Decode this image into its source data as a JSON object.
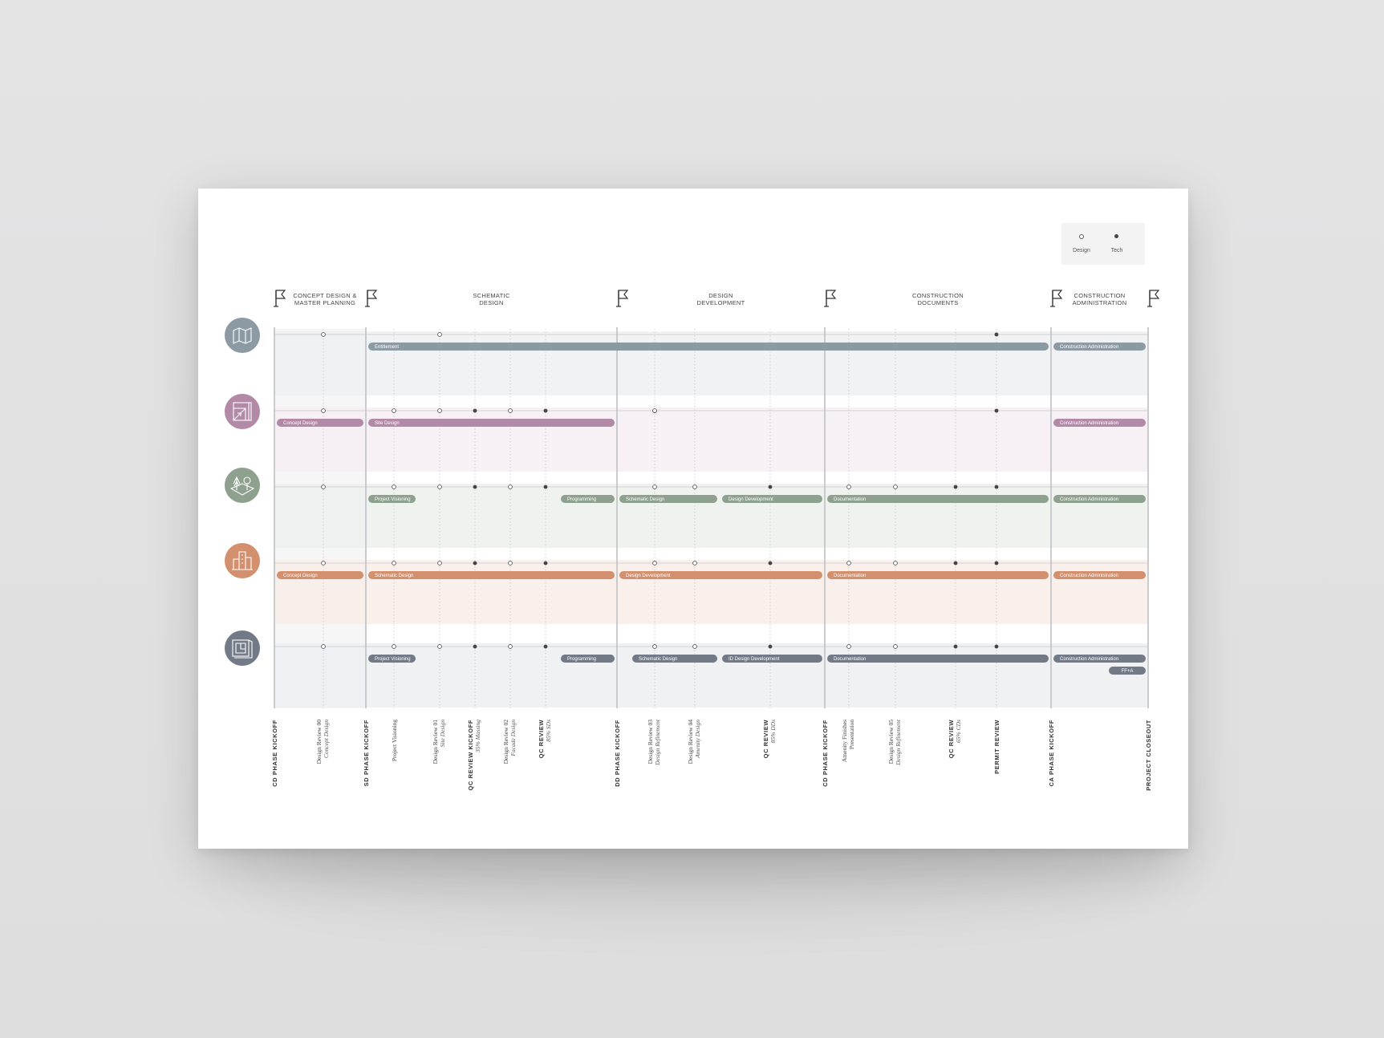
{
  "legend": [
    {
      "label": "Design",
      "marker": "open"
    },
    {
      "label": "Tech",
      "marker": "filled"
    }
  ],
  "phases": [
    {
      "lines": [
        "CONCEPT DESIGN &",
        "MASTER PLANNING"
      ],
      "start": 0,
      "end": 1
    },
    {
      "lines": [
        "SCHEMATIC",
        "DESIGN"
      ],
      "start": 1,
      "end": 2
    },
    {
      "lines": [
        "DESIGN",
        "DEVELOPMENT"
      ],
      "start": 2,
      "end": 3
    },
    {
      "lines": [
        "CONSTRUCTION",
        "DOCUMENTS"
      ],
      "start": 3,
      "end": 4
    },
    {
      "lines": [
        "CONSTRUCTION",
        "ADMINISTRATION"
      ],
      "start": 4,
      "end": 5
    }
  ],
  "flag_icon": "flag-icon",
  "milestones": [
    {
      "id": "cd",
      "main": "CD PHASE KICKOFF",
      "style": "caps",
      "kickoff": true
    },
    {
      "id": "dr00",
      "main": "Design Review 00",
      "sub": "Concept Design",
      "style": "serif"
    },
    {
      "id": "sd",
      "main": "SD PHASE KICKOFF",
      "style": "caps",
      "kickoff": true
    },
    {
      "id": "pv",
      "main": "Project Visioning",
      "style": "serif"
    },
    {
      "id": "dr01",
      "main": "Design Review 01",
      "sub": "Site Design",
      "style": "serif"
    },
    {
      "id": "qc1",
      "main": "QC REVIEW KICKOFF",
      "sub": "35% Massing",
      "style": "caps"
    },
    {
      "id": "dr02",
      "main": "Design Review 02",
      "sub": "Facade Design",
      "style": "serif"
    },
    {
      "id": "qc2",
      "main": "QC REVIEW",
      "sub": "85% SDs",
      "style": "caps"
    },
    {
      "id": "dd",
      "main": "DD PHASE KICKOFF",
      "style": "caps",
      "kickoff": true
    },
    {
      "id": "dr03",
      "main": "Design Review 03",
      "sub": "Design Refinement",
      "style": "serif"
    },
    {
      "id": "dr04",
      "main": "Design Review 04",
      "sub": "Amenity Design",
      "style": "serif"
    },
    {
      "id": "qc3",
      "main": "QC REVIEW",
      "sub": "85% DDs",
      "style": "caps"
    },
    {
      "id": "cdk",
      "main": "CD PHASE KICKOFF",
      "style": "caps",
      "kickoff": true
    },
    {
      "id": "amen",
      "main": "Amenity Finishes",
      "sub": "Presentation",
      "style": "serif",
      "sub_upright": true
    },
    {
      "id": "dr05",
      "main": "Design Review 05",
      "sub": "Design Refinement",
      "style": "serif"
    },
    {
      "id": "qc4",
      "main": "QC REVIEW",
      "sub": "65% CDs",
      "style": "caps"
    },
    {
      "id": "permit",
      "main": "PERMIT REVIEW",
      "style": "caps"
    },
    {
      "id": "ca",
      "main": "CA PHASE KICKOFF",
      "style": "caps",
      "kickoff": true
    },
    {
      "id": "close",
      "main": "PROJECT CLOSEOUT",
      "style": "caps",
      "kickoff": true
    }
  ],
  "lanes": [
    {
      "name": "masterplan",
      "icon": "map-icon",
      "color": "#8c9ba3",
      "band": "#eef1f2",
      "points": [
        [
          "dr00",
          "open"
        ],
        [
          "dr01",
          "open"
        ],
        [
          "permit",
          "filled"
        ]
      ],
      "bars": [
        {
          "label": "Entitlement",
          "from": "sd",
          "to": "ca",
          "row": 0
        },
        {
          "label": "Construction Administration",
          "from": "ca",
          "to": "close",
          "row": 0
        }
      ]
    },
    {
      "name": "site-design",
      "icon": "blueprint-icon",
      "color": "#b389a8",
      "band": "#f6eef3",
      "points": [
        [
          "dr00",
          "open"
        ],
        [
          "pv",
          "open"
        ],
        [
          "dr01",
          "open"
        ],
        [
          "qc1",
          "filled"
        ],
        [
          "dr02",
          "open"
        ],
        [
          "qc2",
          "filled"
        ],
        [
          "dr03",
          "open"
        ],
        [
          "permit",
          "filled"
        ]
      ],
      "bars": [
        {
          "label": "Concept Design",
          "from": "cd",
          "to": "sd",
          "row": 0
        },
        {
          "label": "Site Design",
          "from": "sd",
          "to": "dd",
          "row": 0
        },
        {
          "label": "Construction Administration",
          "from": "ca",
          "to": "close",
          "row": 0
        }
      ]
    },
    {
      "name": "landscape",
      "icon": "landscape-icon",
      "color": "#8ea08e",
      "band": "#eef1ee",
      "points": [
        [
          "dr00",
          "open"
        ],
        [
          "pv",
          "open"
        ],
        [
          "dr01",
          "open"
        ],
        [
          "qc1",
          "filled"
        ],
        [
          "dr02",
          "open"
        ],
        [
          "qc2",
          "filled"
        ],
        [
          "dr03",
          "open"
        ],
        [
          "dr04",
          "open"
        ],
        [
          "qc3",
          "filled"
        ],
        [
          "amen",
          "open"
        ],
        [
          "dr05",
          "open"
        ],
        [
          "qc4",
          "filled"
        ],
        [
          "permit",
          "filled"
        ]
      ],
      "bars": [
        {
          "label": "Project Visioning",
          "from": "sd",
          "to": "pv_end",
          "row": 0
        },
        {
          "label": "Programming",
          "from": "prog_start",
          "to": "dd",
          "row": 0
        },
        {
          "label": "Schematic Design",
          "from": "dd",
          "to": "dr04_end",
          "row": 0
        },
        {
          "label": "Design Development",
          "from": "dr04_end",
          "to": "cdk",
          "row": 0
        },
        {
          "label": "Documentation",
          "from": "cdk",
          "to": "ca",
          "row": 0
        },
        {
          "label": "Construction Administration",
          "from": "ca",
          "to": "close",
          "row": 0
        }
      ]
    },
    {
      "name": "architecture",
      "icon": "buildings-icon",
      "color": "#d2906f",
      "band": "#f8eee9",
      "points": [
        [
          "dr00",
          "open"
        ],
        [
          "pv",
          "open"
        ],
        [
          "dr01",
          "open"
        ],
        [
          "qc1",
          "filled"
        ],
        [
          "dr02",
          "open"
        ],
        [
          "qc2",
          "filled"
        ],
        [
          "dr03",
          "open"
        ],
        [
          "dr04",
          "open"
        ],
        [
          "qc3",
          "filled"
        ],
        [
          "amen",
          "open"
        ],
        [
          "dr05",
          "open"
        ],
        [
          "qc4",
          "filled"
        ],
        [
          "permit",
          "filled"
        ]
      ],
      "bars": [
        {
          "label": "Concept Design",
          "from": "cd",
          "to": "sd",
          "row": 0
        },
        {
          "label": "Schematic Design",
          "from": "sd",
          "to": "dd",
          "row": 0
        },
        {
          "label": "Design Development",
          "from": "dd",
          "to": "cdk",
          "row": 0
        },
        {
          "label": "Documentation",
          "from": "cdk",
          "to": "ca",
          "row": 0
        },
        {
          "label": "Construction Administration",
          "from": "ca",
          "to": "close",
          "row": 0
        }
      ]
    },
    {
      "name": "interiors",
      "icon": "floorplan-icon",
      "color": "#737a87",
      "band": "#eef0f2",
      "points": [
        [
          "dr00",
          "open"
        ],
        [
          "pv",
          "open"
        ],
        [
          "dr01",
          "open"
        ],
        [
          "qc1",
          "filled"
        ],
        [
          "dr02",
          "open"
        ],
        [
          "qc2",
          "filled"
        ],
        [
          "dr03",
          "open"
        ],
        [
          "dr04",
          "open"
        ],
        [
          "qc3",
          "filled"
        ],
        [
          "amen",
          "open"
        ],
        [
          "dr05",
          "open"
        ],
        [
          "qc4",
          "filled"
        ],
        [
          "permit",
          "filled"
        ]
      ],
      "bars": [
        {
          "label": "Project Visioning",
          "from": "sd",
          "to": "pv_end",
          "row": 0
        },
        {
          "label": "Programming",
          "from": "prog_start",
          "to": "dd",
          "row": 0
        },
        {
          "label": "Schematic Design",
          "from": "sd_start2",
          "to": "dr04_end",
          "row": 0
        },
        {
          "label": "ID Design Development",
          "from": "dr04_end",
          "to": "cdk",
          "row": 0
        },
        {
          "label": "Documentation",
          "from": "cdk",
          "to": "ca",
          "row": 0
        },
        {
          "label": "Construction Administration",
          "from": "ca",
          "to": "close",
          "row": 0
        },
        {
          "label": "FF+A",
          "from": "ffa_start",
          "to": "close",
          "row": 1
        }
      ]
    }
  ]
}
